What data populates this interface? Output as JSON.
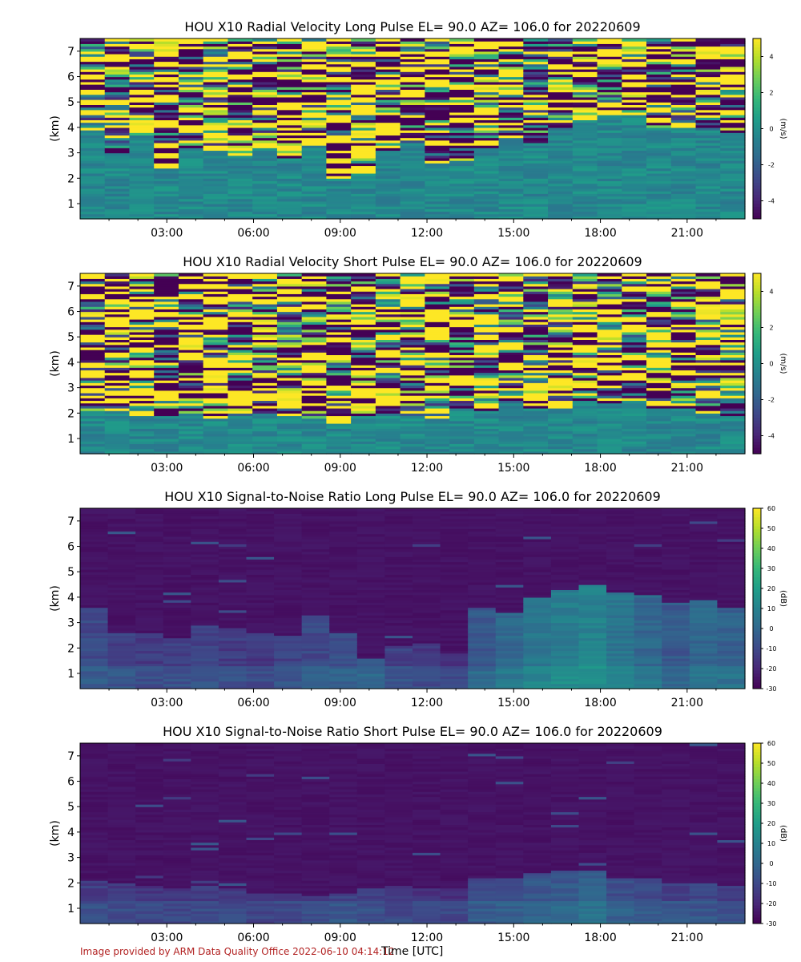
{
  "figure": {
    "credit": "Image provided by ARM Data Quality Office 2022-06-10 04:14:12",
    "xlabel": "Time [UTC]"
  },
  "colors": {
    "viridis": [
      "#440154",
      "#482878",
      "#3e4989",
      "#31688e",
      "#26828e",
      "#1f9e89",
      "#35b779",
      "#6ece58",
      "#b5de2b",
      "#fde725"
    ],
    "credit": "#b22222"
  },
  "chart_data": [
    {
      "type": "heatmap",
      "title": "HOU X10 Radial Velocity Long Pulse EL= 90.0 AZ= 106.0 for 20220609",
      "ylabel": "(km)",
      "colorbar_label": "(m/s)",
      "xlim_hours": [
        0,
        23
      ],
      "ylim_km": [
        0.4,
        7.5
      ],
      "xticks": [
        "03:00",
        "06:00",
        "09:00",
        "12:00",
        "15:00",
        "18:00",
        "21:00"
      ],
      "yticks": [
        1,
        2,
        3,
        4,
        5,
        6,
        7
      ],
      "cbar_range": [
        -5,
        5
      ],
      "cbar_ticks": [
        4,
        2,
        0,
        -2,
        -4
      ],
      "noise_style": "velocity",
      "signal_top_km": [
        3.9,
        3.0,
        3.7,
        2.4,
        3.2,
        3.1,
        2.9,
        3.2,
        2.7,
        3.3,
        1.9,
        2.3,
        3.1,
        3.4,
        2.6,
        2.7,
        3.2,
        3.6,
        3.4,
        3.9,
        4.3,
        4.6,
        4.5,
        4.0,
        4.0,
        3.9,
        3.8
      ]
    },
    {
      "type": "heatmap",
      "title": "HOU X10 Radial Velocity Short Pulse EL= 90.0 AZ= 106.0 for 20220609",
      "ylabel": "(km)",
      "colorbar_label": "(m/s)",
      "xlim_hours": [
        0,
        23
      ],
      "ylim_km": [
        0.4,
        7.5
      ],
      "xticks": [
        "03:00",
        "06:00",
        "09:00",
        "12:00",
        "15:00",
        "18:00",
        "21:00"
      ],
      "yticks": [
        1,
        2,
        3,
        4,
        5,
        6,
        7
      ],
      "cbar_range": [
        -5,
        5
      ],
      "cbar_ticks": [
        4,
        2,
        0,
        -2,
        -4
      ],
      "noise_style": "velocity",
      "signal_top_km": [
        2.1,
        2.1,
        1.9,
        1.8,
        2.0,
        1.8,
        1.9,
        2.0,
        1.9,
        1.8,
        1.7,
        1.9,
        2.0,
        1.9,
        1.8,
        2.2,
        2.1,
        2.4,
        2.3,
        2.3,
        2.5,
        2.4,
        2.5,
        2.3,
        2.2,
        2.0,
        1.9
      ]
    },
    {
      "type": "heatmap",
      "title": "HOU X10 Signal-to-Noise Ratio Long Pulse EL= 90.0 AZ= 106.0 for 20220609",
      "ylabel": "(km)",
      "colorbar_label": "(dB)",
      "xlim_hours": [
        0,
        23
      ],
      "ylim_km": [
        0.4,
        7.5
      ],
      "xticks": [
        "03:00",
        "06:00",
        "09:00",
        "12:00",
        "15:00",
        "18:00",
        "21:00"
      ],
      "yticks": [
        1,
        2,
        3,
        4,
        5,
        6,
        7
      ],
      "cbar_range": [
        -30,
        60
      ],
      "cbar_ticks": [
        60,
        50,
        40,
        30,
        20,
        10,
        0,
        -10,
        -20,
        -30
      ],
      "noise_style": "snr",
      "signal_top_km": [
        3.6,
        2.6,
        2.6,
        2.4,
        2.9,
        2.8,
        2.6,
        2.5,
        3.3,
        2.6,
        1.6,
        2.1,
        2.2,
        1.8,
        3.6,
        3.4,
        4.0,
        4.3,
        4.5,
        4.2,
        4.1,
        3.8,
        3.9,
        3.6
      ],
      "signal_level": [
        -10,
        -12,
        -14,
        -13,
        -12,
        -14,
        -15,
        -12,
        -10,
        -8,
        -5,
        -12,
        -15,
        -16,
        -5,
        0,
        5,
        8,
        10,
        5,
        0,
        -5,
        0,
        -2
      ]
    },
    {
      "type": "heatmap",
      "title": "HOU X10 Signal-to-Noise Ratio Short Pulse EL= 90.0 AZ= 106.0 for 20220609",
      "ylabel": "(km)",
      "colorbar_label": "(dB)",
      "xlim_hours": [
        0,
        23
      ],
      "ylim_km": [
        0.4,
        7.5
      ],
      "xticks": [
        "03:00",
        "06:00",
        "09:00",
        "12:00",
        "15:00",
        "18:00",
        "21:00"
      ],
      "yticks": [
        1,
        2,
        3,
        4,
        5,
        6,
        7
      ],
      "cbar_range": [
        -30,
        60
      ],
      "cbar_ticks": [
        60,
        50,
        40,
        30,
        20,
        10,
        0,
        -10,
        -20,
        -30
      ],
      "noise_style": "snr",
      "signal_top_km": [
        2.1,
        2.0,
        1.9,
        1.8,
        1.9,
        1.8,
        1.7,
        1.6,
        1.5,
        1.7,
        1.8,
        1.9,
        1.8,
        1.8,
        2.3,
        2.3,
        2.4,
        2.5,
        2.5,
        2.3,
        2.2,
        2.0,
        2.0,
        1.9
      ],
      "signal_level": [
        -14,
        -15,
        -16,
        -16,
        -15,
        -16,
        -17,
        -16,
        -14,
        -12,
        -14,
        -16,
        -17,
        -17,
        -10,
        -8,
        -6,
        -5,
        -2,
        -8,
        -10,
        -12,
        -12,
        -13
      ]
    }
  ]
}
